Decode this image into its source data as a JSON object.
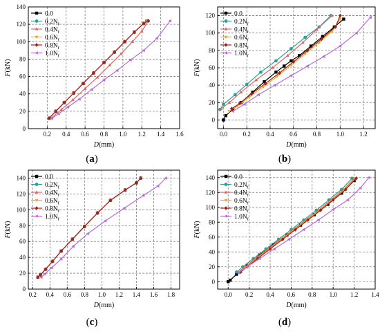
{
  "chart_data": [
    {
      "type": "line",
      "caption_letter": "a",
      "xlabel_base": "D",
      "xlabel_unit": "(mm)",
      "ylabel_base": "F",
      "ylabel_unit": "(kN)",
      "xlim": [
        0.0,
        1.6
      ],
      "ylim": [
        0,
        140
      ],
      "xticks": [
        "0.2",
        "0.4",
        "0.6",
        "0.8",
        "1.0",
        "1.2",
        "1.4",
        "1.6"
      ],
      "xtick_values": [
        0.2,
        0.4,
        0.6,
        0.8,
        1.0,
        1.2,
        1.4,
        1.6
      ],
      "yticks": [
        "0",
        "20",
        "40",
        "60",
        "80",
        "100",
        "120",
        "140"
      ],
      "ytick_values": [
        0,
        20,
        40,
        60,
        80,
        100,
        120,
        140
      ],
      "grid": true,
      "legend_position": "top-left",
      "series": [
        {
          "name": "0.0",
          "label_main": "0.0",
          "label_sub": "",
          "color": "#000000",
          "marker": "square",
          "x": [
            0.22,
            0.29,
            0.38,
            0.48,
            0.58,
            0.69,
            0.8,
            0.91,
            1.02,
            1.12,
            1.22,
            1.26
          ],
          "y": [
            12,
            20,
            30,
            41,
            52,
            64,
            76,
            88,
            100,
            111,
            121,
            124
          ]
        },
        {
          "name": "0.2Nf",
          "label_main": "0.2N",
          "label_sub": "f",
          "color": "#2aa198",
          "marker": "circle",
          "x": [
            0.22,
            0.29,
            0.38,
            0.48,
            0.58,
            0.69,
            0.8,
            0.91,
            1.02,
            1.12,
            1.22,
            1.25
          ],
          "y": [
            12,
            20,
            30,
            41,
            52,
            64,
            76,
            88,
            100,
            111,
            121,
            124
          ]
        },
        {
          "name": "0.4Nf",
          "label_main": "0.4N",
          "label_sub": "f",
          "color": "#e06666",
          "marker": "triangle-up",
          "x": [
            0.24,
            0.35,
            0.47,
            0.6,
            0.73,
            0.86,
            0.98,
            1.1,
            1.2,
            1.27
          ],
          "y": [
            12,
            22,
            33,
            46,
            59,
            73,
            86,
            100,
            112,
            124
          ]
        },
        {
          "name": "0.6Nf",
          "label_main": "0.6N",
          "label_sub": "f",
          "color": "#f5a623",
          "marker": "triangle-down",
          "x": [
            0.22,
            0.29,
            0.38,
            0.48,
            0.58,
            0.69,
            0.8,
            0.91,
            1.02,
            1.12,
            1.22,
            1.26
          ],
          "y": [
            12,
            20,
            30,
            41,
            52,
            64,
            76,
            88,
            100,
            111,
            121,
            124
          ]
        },
        {
          "name": "0.8Nf",
          "label_main": "0.8N",
          "label_sub": "f",
          "color": "#a0201e",
          "marker": "diamond",
          "x": [
            0.22,
            0.29,
            0.38,
            0.48,
            0.58,
            0.69,
            0.8,
            0.91,
            1.02,
            1.12,
            1.22,
            1.27
          ],
          "y": [
            12,
            20,
            30,
            41,
            52,
            64,
            76,
            88,
            100,
            111,
            121,
            124
          ]
        },
        {
          "name": "1.0Nf",
          "label_main": "1.0N",
          "label_sub": "f",
          "color": "#b76cd8",
          "marker": "triangle-left",
          "x": [
            0.25,
            0.32,
            0.42,
            0.54,
            0.67,
            0.8,
            0.94,
            1.08,
            1.22,
            1.36,
            1.5
          ],
          "y": [
            12,
            17,
            25,
            34,
            45,
            56,
            67,
            79,
            90,
            104,
            124
          ]
        }
      ]
    },
    {
      "type": "line",
      "caption_letter": "b",
      "xlabel_base": "D",
      "xlabel_unit": "(mm)",
      "ylabel_base": "F",
      "ylabel_unit": "(kN)",
      "xlim": [
        -0.05,
        1.3
      ],
      "ylim": [
        -10,
        130
      ],
      "xticks": [
        "0.0",
        "0.2",
        "0.4",
        "0.6",
        "0.8",
        "1.0",
        "1.2"
      ],
      "xtick_values": [
        0.0,
        0.2,
        0.4,
        0.6,
        0.8,
        1.0,
        1.2
      ],
      "yticks": [
        "0",
        "20",
        "40",
        "60",
        "80",
        "100",
        "120"
      ],
      "ytick_values": [
        0,
        20,
        40,
        60,
        80,
        100,
        120
      ],
      "grid": true,
      "legend_position": "top-left",
      "series": [
        {
          "name": "0.0",
          "label_main": "0.0",
          "label_sub": "",
          "color": "#000000",
          "marker": "square",
          "x": [
            0.0,
            0.02,
            0.08,
            0.15,
            0.25,
            0.35,
            0.45,
            0.52,
            0.58,
            0.65,
            0.75,
            0.85,
            0.95,
            1.03
          ],
          "y": [
            0,
            5,
            12,
            20,
            32,
            44,
            55,
            62,
            68,
            74,
            85,
            96,
            107,
            116
          ]
        },
        {
          "name": "0.2Nf",
          "label_main": "0.2N",
          "label_sub": "f",
          "color": "#2aa198",
          "marker": "circle",
          "x": [
            -0.03,
            0.0,
            0.1,
            0.2,
            0.32,
            0.45,
            0.58,
            0.7,
            0.82,
            0.92
          ],
          "y": [
            12,
            18,
            29,
            41,
            55,
            68,
            82,
            95,
            107,
            120
          ]
        },
        {
          "name": "0.4Nf",
          "label_main": "0.4N",
          "label_sub": "f",
          "color": "#e06666",
          "marker": "triangle-up",
          "x": [
            -0.02,
            0.05,
            0.15,
            0.28,
            0.42,
            0.55,
            0.68,
            0.8,
            0.93
          ],
          "y": [
            13,
            20,
            32,
            46,
            60,
            74,
            89,
            104,
            120
          ]
        },
        {
          "name": "0.6Nf",
          "label_main": "0.6N",
          "label_sub": "f",
          "color": "#f5a623",
          "marker": "triangle-down",
          "x": [
            0.05,
            0.12,
            0.22,
            0.34,
            0.46,
            0.58,
            0.7,
            0.82,
            0.93,
            1.0
          ],
          "y": [
            10,
            16,
            26,
            38,
            50,
            63,
            76,
            89,
            102,
            116
          ]
        },
        {
          "name": "0.8Nf",
          "label_main": "0.8N",
          "label_sub": "f",
          "color": "#a0201e",
          "marker": "diamond",
          "x": [
            0.07,
            0.14,
            0.24,
            0.36,
            0.48,
            0.6,
            0.72,
            0.84,
            0.96,
            1.0
          ],
          "y": [
            13,
            19,
            30,
            42,
            54,
            67,
            80,
            93,
            107,
            120
          ]
        },
        {
          "name": "1.0Nf",
          "label_main": "1.0N",
          "label_sub": "f",
          "color": "#b76cd8",
          "marker": "triangle-left",
          "x": [
            0.08,
            0.18,
            0.3,
            0.44,
            0.58,
            0.72,
            0.86,
            1.0,
            1.14,
            1.26
          ],
          "y": [
            10,
            18,
            29,
            40,
            51,
            62,
            73,
            85,
            100,
            118
          ]
        }
      ]
    },
    {
      "type": "line",
      "caption_letter": "c",
      "xlabel_base": "D",
      "xlabel_unit": "(mm)",
      "ylabel_base": "F",
      "ylabel_unit": "(kN)",
      "xlim": [
        0.15,
        1.9
      ],
      "ylim": [
        0,
        150
      ],
      "xticks": [
        "0.2",
        "0.4",
        "0.6",
        "0.8",
        "1.0",
        "1.2",
        "1.4",
        "1.6",
        "1.8"
      ],
      "xtick_values": [
        0.2,
        0.4,
        0.6,
        0.8,
        1.0,
        1.2,
        1.4,
        1.6,
        1.8
      ],
      "yticks": [
        "0",
        "20",
        "40",
        "60",
        "80",
        "100",
        "120",
        "140"
      ],
      "ytick_values": [
        0,
        20,
        40,
        60,
        80,
        100,
        120,
        140
      ],
      "grid": true,
      "legend_position": "top-left",
      "series": [
        {
          "name": "0.0",
          "label_main": "0.0",
          "label_sub": "",
          "color": "#000000",
          "marker": "square",
          "x": [
            0.26,
            0.29,
            0.35,
            0.43,
            0.53,
            0.66,
            0.8,
            0.95,
            1.1,
            1.27,
            1.4,
            1.45
          ],
          "y": [
            15,
            18,
            25,
            35,
            48,
            63,
            79,
            96,
            112,
            125,
            134,
            140
          ]
        },
        {
          "name": "0.2Nf",
          "label_main": "0.2N",
          "label_sub": "f",
          "color": "#2aa198",
          "marker": "circle",
          "x": [
            0.26,
            0.29,
            0.35,
            0.43,
            0.53,
            0.66,
            0.8,
            0.95,
            1.1,
            1.27,
            1.4,
            1.45
          ],
          "y": [
            15,
            18,
            25,
            35,
            48,
            63,
            79,
            96,
            112,
            125,
            134,
            140
          ]
        },
        {
          "name": "0.4Nf",
          "label_main": "0.4N",
          "label_sub": "f",
          "color": "#e06666",
          "marker": "triangle-up",
          "x": [
            0.26,
            0.29,
            0.35,
            0.43,
            0.53,
            0.66,
            0.8,
            0.95,
            1.1,
            1.27,
            1.4,
            1.45
          ],
          "y": [
            15,
            18,
            25,
            35,
            48,
            63,
            79,
            96,
            112,
            125,
            134,
            140
          ]
        },
        {
          "name": "0.6Nf",
          "label_main": "0.6N",
          "label_sub": "f",
          "color": "#f5a623",
          "marker": "triangle-down",
          "x": [
            0.26,
            0.29,
            0.35,
            0.43,
            0.53,
            0.66,
            0.8,
            0.95,
            1.1,
            1.27,
            1.4,
            1.45
          ],
          "y": [
            15,
            18,
            25,
            35,
            48,
            63,
            79,
            96,
            112,
            125,
            134,
            140
          ]
        },
        {
          "name": "0.8Nf",
          "label_main": "0.8N",
          "label_sub": "f",
          "color": "#a0201e",
          "marker": "diamond",
          "x": [
            0.26,
            0.29,
            0.35,
            0.43,
            0.53,
            0.66,
            0.8,
            0.95,
            1.1,
            1.27,
            1.4,
            1.45
          ],
          "y": [
            15,
            18,
            25,
            35,
            48,
            63,
            79,
            96,
            112,
            125,
            134,
            140
          ]
        },
        {
          "name": "1.0Nf",
          "label_main": "1.0N",
          "label_sub": "f",
          "color": "#b76cd8",
          "marker": "triangle-left",
          "x": [
            0.3,
            0.34,
            0.42,
            0.53,
            0.67,
            0.84,
            1.04,
            1.26,
            1.48,
            1.65,
            1.74
          ],
          "y": [
            15,
            19,
            27,
            38,
            54,
            70,
            86,
            102,
            118,
            130,
            140
          ]
        }
      ]
    },
    {
      "type": "line",
      "caption_letter": "d",
      "xlabel_base": "D",
      "xlabel_unit": "(mm)",
      "ylabel_base": "F",
      "ylabel_unit": "(kN)",
      "xlim": [
        -0.1,
        1.4
      ],
      "ylim": [
        -10,
        150
      ],
      "xticks": [
        "0.0",
        "0.2",
        "0.4",
        "0.6",
        "0.8",
        "1.0",
        "1.2",
        "1.4"
      ],
      "xtick_values": [
        0.0,
        0.2,
        0.4,
        0.6,
        0.8,
        1.0,
        1.2,
        1.4
      ],
      "yticks": [
        "0",
        "20",
        "40",
        "60",
        "80",
        "100",
        "120",
        "140"
      ],
      "ytick_values": [
        0,
        20,
        40,
        60,
        80,
        100,
        120,
        140
      ],
      "grid": true,
      "legend_position": "top-left",
      "series": [
        {
          "name": "0.0",
          "label_main": "0.0",
          "label_sub": "",
          "color": "#000000",
          "marker": "square",
          "x": [
            0.0,
            0.02,
            0.08,
            0.18,
            0.3,
            0.43,
            0.56,
            0.69,
            0.82,
            0.95,
            1.08,
            1.2
          ],
          "y": [
            0,
            2,
            10,
            22,
            36,
            50,
            63,
            76,
            90,
            104,
            119,
            136
          ]
        },
        {
          "name": "0.2Nf",
          "label_main": "0.2N",
          "label_sub": "f",
          "color": "#2aa198",
          "marker": "circle",
          "x": [
            0.08,
            0.14,
            0.24,
            0.36,
            0.48,
            0.6,
            0.72,
            0.84,
            0.96,
            1.08,
            1.18
          ],
          "y": [
            13,
            20,
            31,
            44,
            57,
            70,
            83,
            96,
            110,
            124,
            139
          ]
        },
        {
          "name": "0.4Nf",
          "label_main": "0.4N",
          "label_sub": "f",
          "color": "#e06666",
          "marker": "triangle-up",
          "x": [
            0.1,
            0.16,
            0.26,
            0.38,
            0.5,
            0.62,
            0.74,
            0.86,
            0.98,
            1.1,
            1.2
          ],
          "y": [
            13,
            20,
            31,
            44,
            57,
            70,
            83,
            96,
            110,
            124,
            139
          ]
        },
        {
          "name": "0.6Nf",
          "label_main": "0.6N",
          "label_sub": "f",
          "color": "#f5a623",
          "marker": "triangle-down",
          "x": [
            0.11,
            0.17,
            0.27,
            0.39,
            0.51,
            0.63,
            0.75,
            0.87,
            0.99,
            1.11,
            1.21
          ],
          "y": [
            13,
            20,
            31,
            44,
            57,
            70,
            83,
            96,
            110,
            124,
            139
          ]
        },
        {
          "name": "0.8Nf",
          "label_main": "0.8N",
          "label_sub": "f",
          "color": "#a0201e",
          "marker": "diamond",
          "x": [
            0.12,
            0.18,
            0.28,
            0.4,
            0.52,
            0.64,
            0.76,
            0.88,
            1.0,
            1.12,
            1.22
          ],
          "y": [
            13,
            20,
            31,
            44,
            57,
            70,
            83,
            96,
            110,
            124,
            139
          ]
        },
        {
          "name": "1.0Nf",
          "label_main": "1.0N",
          "label_sub": "f",
          "color": "#b76cd8",
          "marker": "triangle-left",
          "x": [
            0.1,
            0.18,
            0.3,
            0.44,
            0.58,
            0.72,
            0.86,
            1.0,
            1.14,
            1.26,
            1.34
          ],
          "y": [
            12,
            20,
            31,
            44,
            57,
            70,
            83,
            97,
            110,
            126,
            140
          ]
        }
      ]
    }
  ]
}
